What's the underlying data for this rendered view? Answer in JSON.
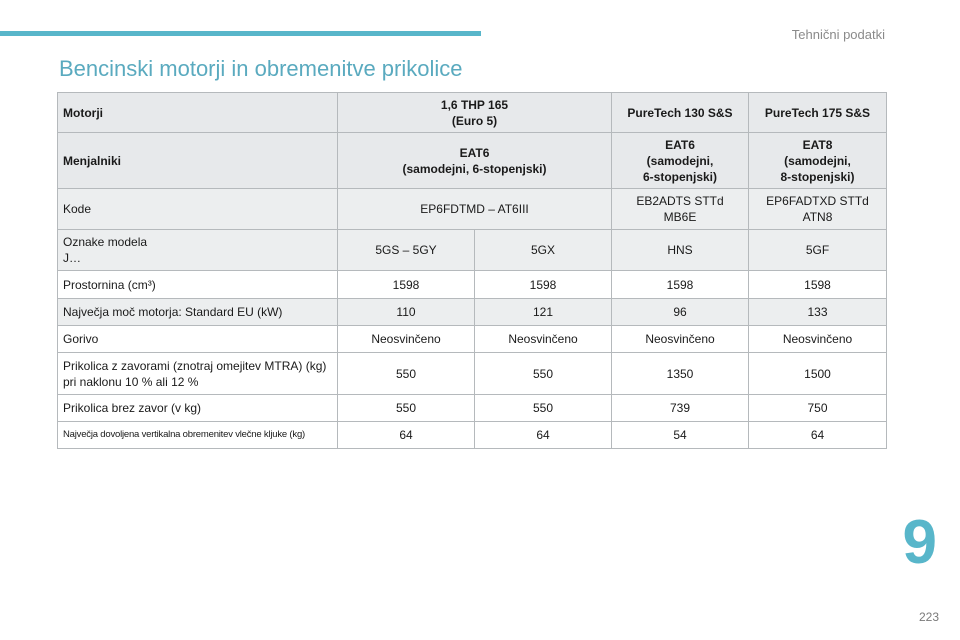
{
  "header": {
    "section_label": "Tehnični podatki",
    "accent_color": "#58b6ca"
  },
  "title": "Bencinski motorji in obremenitve prikolice",
  "table": {
    "motorji": {
      "label": "Motorji",
      "c1": "1,6 THP 165\n(Euro 5)",
      "c2": "PureTech 130 S&S",
      "c3": "PureTech 175 S&S"
    },
    "menjalniki": {
      "label": "Menjalniki",
      "c1": "EAT6\n(samodejni, 6-stopenjski)",
      "c2": "EAT6\n(samodejni,\n6-stopenjski)",
      "c3": "EAT8\n(samodejni,\n8-stopenjski)"
    },
    "kode": {
      "label": "Kode",
      "c1": "EP6FDTMD – AT6III",
      "c2": "EB2ADTS STTd\nMB6E",
      "c3": "EP6FADTXD STTd\nATN8"
    },
    "oznake": {
      "label": "Oznake modela\nJ…",
      "values": [
        "5GS – 5GY",
        "5GX",
        "HNS",
        "5GF"
      ]
    },
    "prostornina": {
      "label": "Prostornina (cm³)",
      "values": [
        "1598",
        "1598",
        "1598",
        "1598"
      ]
    },
    "moc": {
      "label": "Največja moč motorja: Standard EU (kW)",
      "values": [
        "110",
        "121",
        "96",
        "133"
      ]
    },
    "gorivo": {
      "label": "Gorivo",
      "values": [
        "Neosvinčeno",
        "Neosvinčeno",
        "Neosvinčeno",
        "Neosvinčeno"
      ]
    },
    "z_zavorami": {
      "label": "Prikolica z zavorami (znotraj omejitev MTRA) (kg)\npri naklonu 10 % ali 12 %",
      "values": [
        "550",
        "550",
        "1350",
        "1500"
      ]
    },
    "brez_zavor": {
      "label": "Prikolica brez zavor (v kg)",
      "values": [
        "550",
        "550",
        "739",
        "750"
      ]
    },
    "vlecna_kljuka": {
      "label": "Največja dovoljena vertikalna obremenitev vlečne kljuke (kg)",
      "values": [
        "64",
        "64",
        "54",
        "64"
      ]
    }
  },
  "chapter_number": "9",
  "page_number": "223"
}
